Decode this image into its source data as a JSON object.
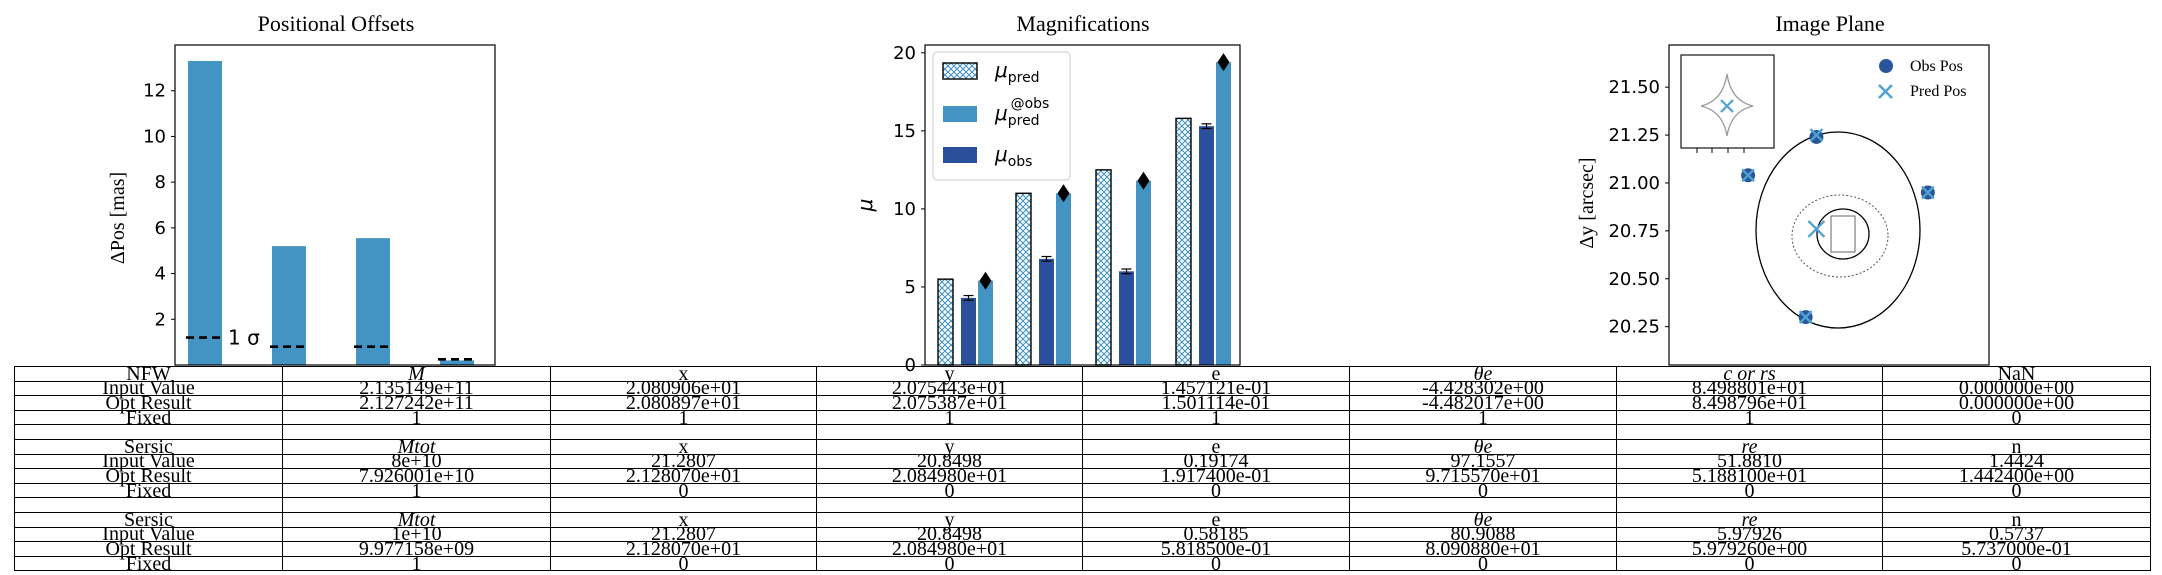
{
  "colors": {
    "bar_light": "#4393c3",
    "bar_dark": "#2b4f9a",
    "marker": "#000000",
    "obs_pos": "#2a5699",
    "pred_pos": "#4fa3d1"
  },
  "chart_data": [
    {
      "type": "bar",
      "title": "Positional Offsets",
      "ylabel": "ΔPos [mas]",
      "ylim": [
        0,
        14
      ],
      "yticks": [
        2,
        4,
        6,
        8,
        10,
        12
      ],
      "values": [
        13.3,
        5.2,
        5.55,
        0.2
      ],
      "sigma_lines": [
        1.2,
        0.8,
        0.8,
        0.25
      ],
      "sigma_label": "1 σ"
    },
    {
      "type": "bar",
      "title": "Magnifications",
      "ylabel": "μ",
      "ylim": [
        0,
        20.5
      ],
      "yticks": [
        0,
        5,
        10,
        15,
        20
      ],
      "legend": [
        "μpred",
        "μpred@obs",
        "μobs"
      ],
      "legend_position": "top-left",
      "series": [
        {
          "name": "μpred",
          "values": [
            5.5,
            11.0,
            12.5,
            15.8
          ]
        },
        {
          "name": "μobs",
          "values": [
            4.3,
            6.8,
            6.0,
            15.3
          ],
          "errors": [
            0.15,
            0.15,
            0.15,
            0.15
          ]
        },
        {
          "name": "μpred@obs",
          "values": [
            5.4,
            11.0,
            11.8,
            19.4
          ]
        }
      ]
    },
    {
      "type": "scatter",
      "title": "Image Plane",
      "ylabel": "Δy [arcsec]",
      "ylim": [
        20.05,
        21.72
      ],
      "xlim": [
        20.4,
        21.29
      ],
      "yticks": [
        "20.25",
        "20.50",
        "20.75",
        "21.00",
        "21.25",
        "21.50"
      ],
      "legend": [
        "Obs Pos",
        "Pred Pos"
      ],
      "legend_position": "top-right",
      "series": [
        {
          "name": "Obs Pos",
          "x": [
            20.81,
            20.62,
            21.12,
            20.78
          ],
          "y": [
            21.24,
            21.04,
            20.95,
            20.3
          ]
        },
        {
          "name": "Pred Pos",
          "x": [
            20.81,
            20.62,
            21.12,
            20.78
          ],
          "y": [
            21.25,
            21.04,
            20.95,
            20.3
          ]
        }
      ],
      "source_center": {
        "x": 20.81,
        "y": 20.76
      }
    }
  ],
  "table": [
    [
      "NFW",
      "M",
      "x",
      "y",
      "e",
      "θe",
      "c or rs",
      "NaN"
    ],
    [
      "Input Value",
      "2.135149e+11",
      "2.080906e+01",
      "2.075443e+01",
      "1.457121e-01",
      "-4.428302e+00",
      "8.498801e+01",
      "0.000000e+00"
    ],
    [
      "Opt Result",
      "2.127242e+11",
      "2.080897e+01",
      "2.075387e+01",
      "1.501114e-01",
      "-4.482017e+00",
      "8.498796e+01",
      "0.000000e+00"
    ],
    [
      "Fixed",
      "1",
      "1",
      "1",
      "1",
      "1",
      "1",
      "0"
    ],
    [
      "",
      "",
      "",
      "",
      "",
      "",
      "",
      ""
    ],
    [
      "Sersic",
      "Mtot",
      "x",
      "y",
      "e",
      "θe",
      "re",
      "n"
    ],
    [
      "Input Value",
      "8e+10",
      "21.2807",
      "20.8498",
      "0.19174",
      "97.1557",
      "51.8810",
      "1.4424"
    ],
    [
      "Opt Result",
      "7.926001e+10",
      "2.128070e+01",
      "2.084980e+01",
      "1.917400e-01",
      "9.715570e+01",
      "5.188100e+01",
      "1.442400e+00"
    ],
    [
      "Fixed",
      "1",
      "0",
      "0",
      "0",
      "0",
      "0",
      "0"
    ],
    [
      "",
      "",
      "",
      "",
      "",
      "",
      "",
      ""
    ],
    [
      "Sersic",
      "Mtot",
      "x",
      "y",
      "e",
      "θe",
      "re",
      "n"
    ],
    [
      "Input Value",
      "1e+10",
      "21.2807",
      "20.8498",
      "0.58185",
      "80.9088",
      "5.97926",
      "0.5737"
    ],
    [
      "Opt Result",
      "9.977158e+09",
      "2.128070e+01",
      "2.084980e+01",
      "5.818500e-01",
      "8.090880e+01",
      "5.979260e+00",
      "5.737000e-01"
    ],
    [
      "Fixed",
      "1",
      "0",
      "0",
      "0",
      "0",
      "0",
      "0"
    ]
  ]
}
